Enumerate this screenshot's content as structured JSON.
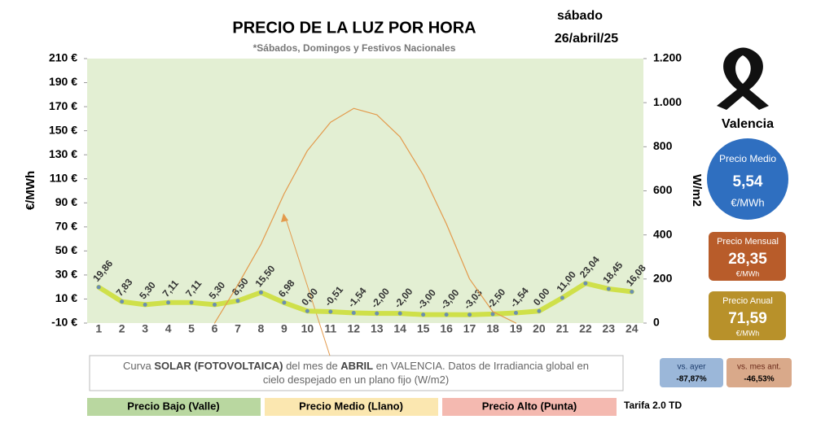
{
  "chart_data": {
    "type": "line",
    "title": "PRECIO DE LA LUZ POR HORA",
    "subtitle": "*Sábados, Domingos y Festivos Nacionales",
    "day": "sábado",
    "date": "26/abril/25",
    "ylabel": "€/MWh",
    "y2label": "W/m2",
    "categories": [
      1,
      2,
      3,
      4,
      5,
      6,
      7,
      8,
      9,
      10,
      11,
      12,
      13,
      14,
      15,
      16,
      17,
      18,
      19,
      20,
      21,
      22,
      23,
      24
    ],
    "series": [
      {
        "name": "Precio",
        "color": "#cfe04a",
        "marker_color": "#6b8fb0",
        "values": [
          19.86,
          7.83,
          5.3,
          7.11,
          7.11,
          5.3,
          8.5,
          15.5,
          6.98,
          0.0,
          -0.51,
          -1.54,
          -2.0,
          -2.0,
          -3.0,
          -3.0,
          -3.03,
          -2.5,
          -1.54,
          0.0,
          11.0,
          23.04,
          18.45,
          16.08
        ],
        "value_labels": [
          "19,86",
          "7,83",
          "5,30",
          "7,11",
          "7,11",
          "5,30",
          "8,50",
          "15,50",
          "6,98",
          "0,00",
          "-0,51",
          "-1,54",
          "-2,00",
          "-2,00",
          "-3,00",
          "-3,00",
          "-3,03",
          "-2,50",
          "-1,54",
          "0,00",
          "11,00",
          "23,04",
          "18,45",
          "16,08"
        ]
      },
      {
        "name": "Solar",
        "color": "#e39a4c",
        "axis": "y2",
        "values": [
          null,
          null,
          null,
          null,
          null,
          0,
          173,
          358,
          587,
          782,
          911,
          974,
          945,
          845,
          672,
          450,
          200,
          52,
          0,
          null,
          null,
          null,
          null,
          null
        ]
      }
    ],
    "ylim": [
      -10,
      210
    ],
    "yticks": [
      {
        "value": -10,
        "label": "-10 €"
      },
      {
        "value": 10,
        "label": "10 €"
      },
      {
        "value": 30,
        "label": "30 €"
      },
      {
        "value": 50,
        "label": "50 €"
      },
      {
        "value": 70,
        "label": "70 €"
      },
      {
        "value": 90,
        "label": "90 €"
      },
      {
        "value": 110,
        "label": "110 €"
      },
      {
        "value": 130,
        "label": "130 €"
      },
      {
        "value": 150,
        "label": "150 €"
      },
      {
        "value": 170,
        "label": "170 €"
      },
      {
        "value": 190,
        "label": "190 €"
      },
      {
        "value": 210,
        "label": "210 €"
      }
    ],
    "y2lim": [
      0,
      1200
    ],
    "y2ticks": [
      0,
      200,
      400,
      600,
      800,
      {
        "value": 1000,
        "label": "1.000"
      },
      {
        "value": 1200,
        "label": "1.200"
      }
    ],
    "background": "#e3efd3",
    "annotation": [
      [
        {
          "text": "Curva ",
          "bold": false
        },
        {
          "text": "SOLAR (FOTOVOLTAICA)",
          "bold": true
        },
        {
          "text": " del mes de ",
          "bold": false
        },
        {
          "text": "ABRIL",
          "bold": true
        },
        {
          "text": " en VALENCIA. Datos de Irradiancia global en",
          "bold": false
        }
      ],
      [
        {
          "text": "cielo despejado en un plano fijo (W/m2)",
          "bold": false
        }
      ]
    ]
  },
  "panel": {
    "city": "Valencia",
    "average": {
      "label": "Precio Medio",
      "value": "5,54",
      "unit": "€/MWh"
    },
    "monthly": {
      "label": "Precio Mensual",
      "value": "28,35",
      "unit": "€/MWh"
    },
    "yearly": {
      "label": "Precio Anual",
      "value": "71,59",
      "unit": "€/MWh"
    },
    "vs_yesterday": {
      "label": "vs. ayer",
      "value": "-87,87%"
    },
    "vs_month": {
      "label": "vs. mes ant.",
      "value": "-46,53%"
    }
  },
  "bands": [
    "Precio Bajo (Valle)",
    "Precio Medio (Llano)",
    "Precio Alto (Punta)"
  ],
  "tariff": "Tarifa 2.0 TD"
}
